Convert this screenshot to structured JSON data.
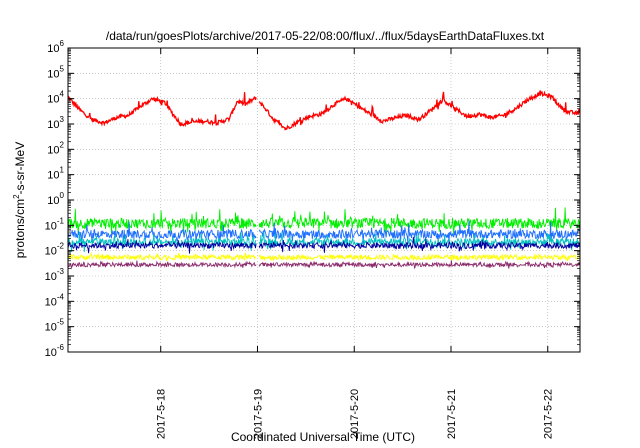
{
  "chart_data": {
    "type": "line",
    "title": "/data/run/goesPlots/archive/2017-05-22/08:00/flux/../flux/5daysEarthDataFluxes.txt",
    "xlabel": "Coordinated Universal Time (UTC)",
    "ylabel": {
      "pre": "protons/cm",
      "sup": "2",
      "post": "-s-sr-MeV"
    },
    "yscale": "log",
    "ylim": [
      1e-06,
      1000000.0
    ],
    "xlim": [
      "2017-05-17 01:00",
      "2017-05-22 08:00"
    ],
    "y_ticks": [
      {
        "value": 1e-06,
        "base": "10",
        "exp": "-6"
      },
      {
        "value": 1e-05,
        "base": "10",
        "exp": "-5"
      },
      {
        "value": 0.0001,
        "base": "10",
        "exp": "-4"
      },
      {
        "value": 0.001,
        "base": "10",
        "exp": "-3"
      },
      {
        "value": 0.01,
        "base": "10",
        "exp": "-2"
      },
      {
        "value": 0.1,
        "base": "10",
        "exp": "-1"
      },
      {
        "value": 1.0,
        "base": "10",
        "exp": "0"
      },
      {
        "value": 10.0,
        "base": "10",
        "exp": "1"
      },
      {
        "value": 100.0,
        "base": "10",
        "exp": "2"
      },
      {
        "value": 1000.0,
        "base": "10",
        "exp": "3"
      },
      {
        "value": 10000.0,
        "base": "10",
        "exp": "4"
      },
      {
        "value": 100000.0,
        "base": "10",
        "exp": "5"
      },
      {
        "value": 1000000.0,
        "base": "10",
        "exp": "6"
      }
    ],
    "x_ticks": [
      {
        "date": "2017-05-18 00:00",
        "label": "2017-5-18"
      },
      {
        "date": "2017-05-19 00:00",
        "label": "2017-5-19"
      },
      {
        "date": "2017-05-20 00:00",
        "label": "2017-5-20"
      },
      {
        "date": "2017-05-21 00:00",
        "label": "2017-5-21"
      },
      {
        "date": "2017-05-22 00:00",
        "label": "2017-5-22"
      }
    ],
    "grid": true,
    "data_gap": [
      "2017-05-18 23:40",
      "2017-05-19 00:20"
    ],
    "series": [
      {
        "color": "#ff0000",
        "noise": 0.08,
        "points": [
          [
            "2017-05-17 01:00",
            12000
          ],
          [
            "2017-05-17 04:00",
            3500
          ],
          [
            "2017-05-17 07:00",
            1500
          ],
          [
            "2017-05-17 10:00",
            1100
          ],
          [
            "2017-05-17 13:00",
            1800
          ],
          [
            "2017-05-17 16:00",
            2200
          ],
          [
            "2017-05-17 19:00",
            5000
          ],
          [
            "2017-05-17 22:00",
            10000
          ],
          [
            "2017-05-18 01:00",
            7000
          ],
          [
            "2017-05-18 03:00",
            2500
          ],
          [
            "2017-05-18 05:00",
            1000
          ],
          [
            "2017-05-18 08:00",
            1200
          ],
          [
            "2017-05-18 11:00",
            1300
          ],
          [
            "2017-05-18 14:00",
            1100
          ],
          [
            "2017-05-18 17:00",
            1600
          ],
          [
            "2017-05-18 19:00",
            8000
          ],
          [
            "2017-05-18 21:00",
            6000
          ],
          [
            "2017-05-18 23:40",
            11000
          ],
          [
            "2017-05-19 00:20",
            8000
          ],
          [
            "2017-05-19 02:00",
            4000
          ],
          [
            "2017-05-19 04:00",
            1500
          ],
          [
            "2017-05-19 07:00",
            650
          ],
          [
            "2017-05-19 10:00",
            1200
          ],
          [
            "2017-05-19 13:00",
            2000
          ],
          [
            "2017-05-19 16:00",
            2500
          ],
          [
            "2017-05-19 19:00",
            6000
          ],
          [
            "2017-05-19 22:00",
            10000
          ],
          [
            "2017-05-20 01:00",
            5000
          ],
          [
            "2017-05-20 04:00",
            2500
          ],
          [
            "2017-05-20 07:00",
            1300
          ],
          [
            "2017-05-20 10:00",
            1700
          ],
          [
            "2017-05-20 13:00",
            2200
          ],
          [
            "2017-05-20 16:00",
            1500
          ],
          [
            "2017-05-20 19:00",
            3500
          ],
          [
            "2017-05-20 22:00",
            9000
          ],
          [
            "2017-05-21 01:00",
            4000
          ],
          [
            "2017-05-21 04:00",
            2000
          ],
          [
            "2017-05-21 07:00",
            2400
          ],
          [
            "2017-05-21 10:00",
            1800
          ],
          [
            "2017-05-21 13:00",
            2200
          ],
          [
            "2017-05-21 16:00",
            4000
          ],
          [
            "2017-05-21 19:00",
            9000
          ],
          [
            "2017-05-21 22:00",
            16000
          ],
          [
            "2017-05-22 01:00",
            12000
          ],
          [
            "2017-05-22 03:00",
            5000
          ],
          [
            "2017-05-22 05:00",
            3000
          ],
          [
            "2017-05-22 08:00",
            2500
          ]
        ]
      },
      {
        "color": "#00ee00",
        "level": 0.12,
        "spread": 1.6,
        "noise": 0.22
      },
      {
        "color": "#1e6fff",
        "level": 0.045,
        "spread": 1.5,
        "noise": 0.2
      },
      {
        "color": "#00c0c0",
        "level": 0.022,
        "spread": 1.4,
        "noise": 0.15
      },
      {
        "color": "#0000a0",
        "level": 0.016,
        "spread": 1.3,
        "noise": 0.12
      },
      {
        "color": "#ffff00",
        "level": 0.0055,
        "spread": 1.25,
        "noise": 0.05
      },
      {
        "color": "#8b2a6b",
        "level": 0.0028,
        "spread": 1.2,
        "noise": 0.05
      }
    ]
  }
}
